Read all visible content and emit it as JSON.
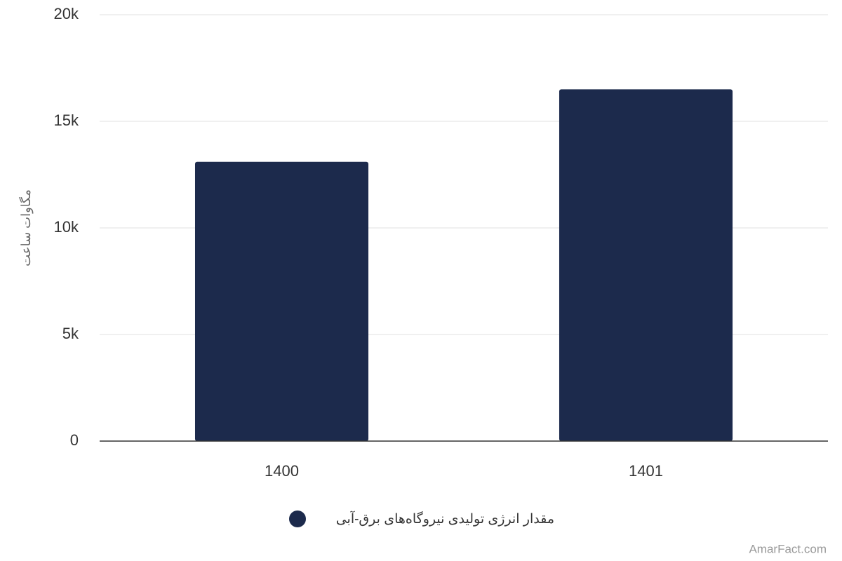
{
  "chart_data": {
    "type": "bar",
    "y_label": "مگاوات ساعت",
    "categories": [
      "1400",
      "1401"
    ],
    "series": [
      {
        "name": "مقدار انرژی تولیدی نیروگاه‌های برق-آبی",
        "color": "#1c2a4c",
        "values": [
          13100,
          16500
        ]
      }
    ],
    "ylim": [
      0,
      20000
    ],
    "yticks": [
      0,
      {
        "value": 5000,
        "label": "5k"
      },
      {
        "value": 10000,
        "label": "10k"
      },
      {
        "value": 15000,
        "label": "15k"
      },
      {
        "value": 20000,
        "label": "20k"
      }
    ],
    "grid": true,
    "legend": "bottom",
    "credit": "AmarFact.com"
  }
}
